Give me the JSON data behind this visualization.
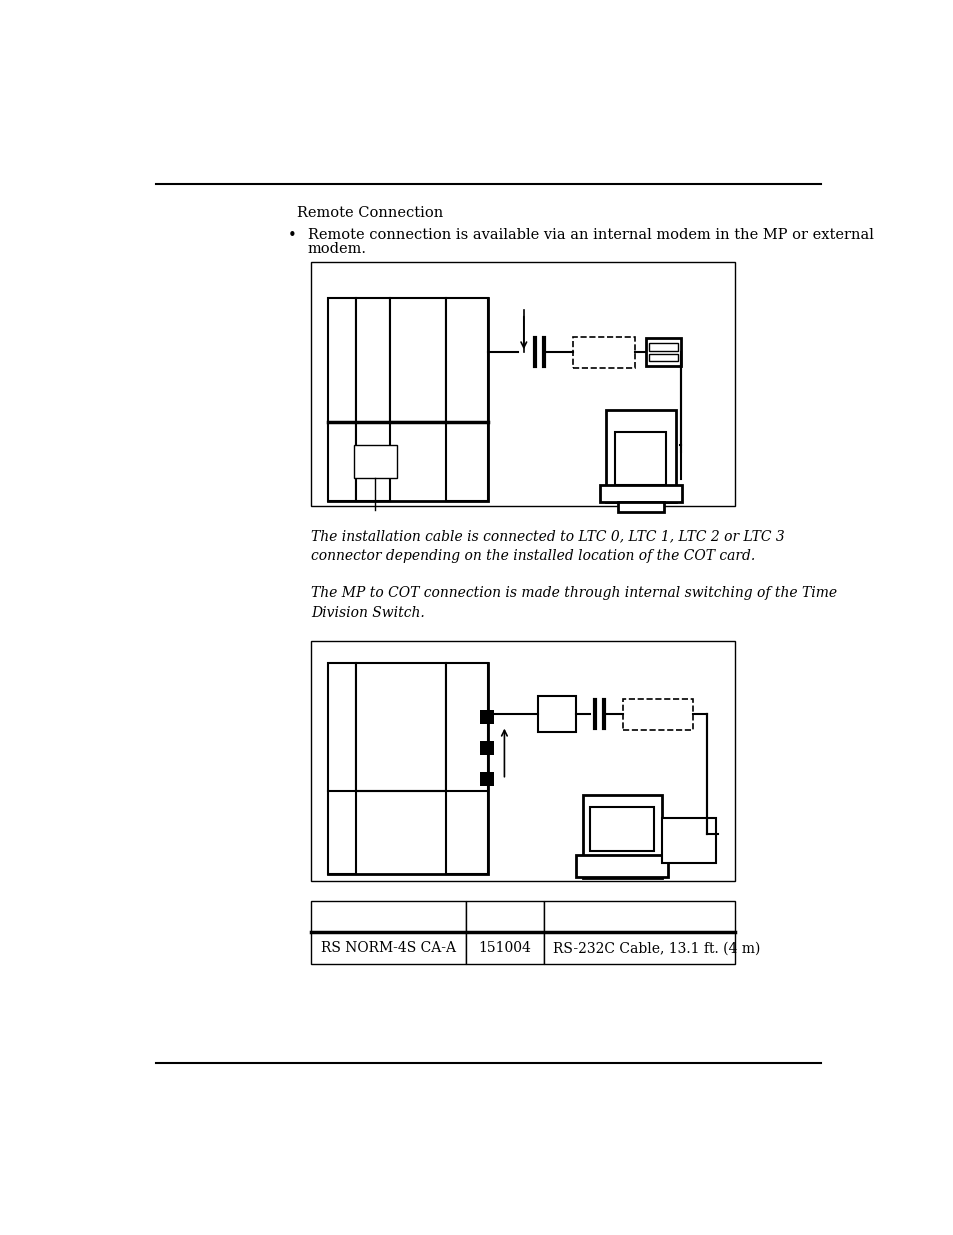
{
  "bg_color": "#ffffff",
  "text_color": "#000000",
  "section_title": "Remote Connection",
  "bullet_text": "Remote connection is available via an internal modem in the MP or external modem.",
  "italic_text1": "The installation cable is connected to LTC 0, LTC 1, LTC 2 or LTC 3\nconnector depending on the installed location of the COT card.",
  "italic_text2": "The MP to COT connection is made through internal switching of the Time\nDivision Switch.",
  "table_row1": [
    "RS NORM-4S CA-A",
    "151004",
    "RS-232C Cable, 13.1 ft. (4 m)"
  ]
}
